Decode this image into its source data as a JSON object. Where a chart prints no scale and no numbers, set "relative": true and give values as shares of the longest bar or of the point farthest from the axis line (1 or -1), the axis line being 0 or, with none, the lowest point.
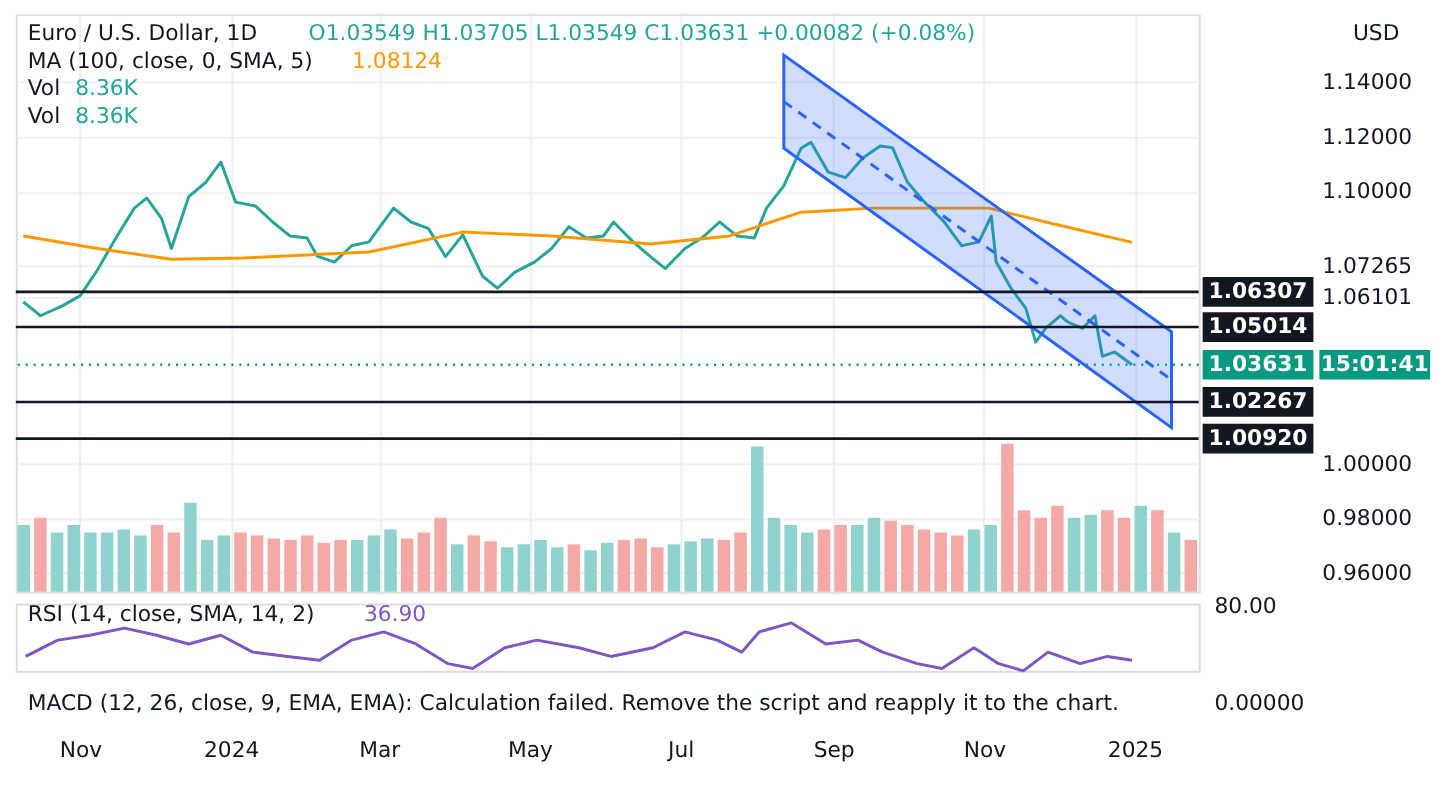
{
  "chart_data": [
    {
      "type": "line",
      "annotations": [
        "Euro / U.S. Dollar, 1D",
        "O1.03549 H1.03705 L1.03549 C1.03631 +0.00082 (+0.08%)",
        "MA (100, close, 0, SMA, 5)",
        "1.08124",
        "Vol",
        "8.36K",
        "Vol",
        "8.36K",
        "USD",
        "15:01:41"
      ],
      "xlim": [
        "2023-10-06",
        "2025-01-27"
      ],
      "xticks": [
        {
          "value": "2023-11-01",
          "label": null
        },
        {
          "value": "2024-01-01",
          "label": null
        },
        {
          "value": "2024-03-01",
          "label": null
        },
        {
          "value": "2024-05-01",
          "label": null
        },
        {
          "value": "2024-07-01",
          "label": null
        },
        {
          "value": "2024-09-01",
          "label": null
        },
        {
          "value": "2024-11-01",
          "label": null
        },
        {
          "value": "2025-01-01",
          "label": null
        }
      ],
      "ylim": [
        0.953,
        1.165
      ],
      "yticks": [
        {
          "value": 1.14,
          "label": "1.14000"
        },
        {
          "value": 1.12,
          "label": "1.12000"
        },
        {
          "value": 1.1,
          "label": "1.10000"
        },
        {
          "value": 1.07265,
          "label": "1.07265"
        },
        {
          "value": 1.06101,
          "label": "1.06101"
        },
        {
          "value": 1.0,
          "label": "1.00000"
        },
        {
          "value": 0.98,
          "label": "0.98000"
        },
        {
          "value": 0.96,
          "label": "0.96000"
        }
      ],
      "grid": true,
      "tick_labels": "y",
      "marker": "none",
      "ref_lines": [
        {
          "axis": "y",
          "value": 1.06307,
          "label": "1.06307",
          "color": "#131722"
        },
        {
          "axis": "y",
          "value": 1.05014,
          "label": "1.05014",
          "color": "#131722"
        },
        {
          "axis": "y",
          "value": 1.03631,
          "label": "1.03631",
          "color": "#089981",
          "line_style": "dotted"
        },
        {
          "axis": "y",
          "value": 1.02267,
          "label": "1.02267",
          "color": "#131722"
        },
        {
          "axis": "y",
          "value": 1.0092,
          "label": "1.00920",
          "color": "#131722"
        }
      ],
      "series": [
        {
          "color": "#26a69a",
          "x": [
            "2023-10-09",
            "2023-10-16",
            "2023-10-25",
            "2023-11-01",
            "2023-11-08",
            "2023-11-16",
            "2023-11-23",
            "2023-11-28",
            "2023-12-04",
            "2023-12-08",
            "2023-12-15",
            "2023-12-22",
            "2023-12-28",
            "2024-01-03",
            "2024-01-11",
            "2024-01-18",
            "2024-01-25",
            "2024-02-01",
            "2024-02-05",
            "2024-02-12",
            "2024-02-19",
            "2024-02-26",
            "2024-03-07",
            "2024-03-14",
            "2024-03-21",
            "2024-03-28",
            "2024-04-04",
            "2024-04-12",
            "2024-04-18",
            "2024-04-25",
            "2024-05-03",
            "2024-05-10",
            "2024-05-17",
            "2024-05-24",
            "2024-05-31",
            "2024-06-04",
            "2024-06-12",
            "2024-06-19",
            "2024-06-25",
            "2024-07-03",
            "2024-07-10",
            "2024-07-17",
            "2024-07-24",
            "2024-07-31",
            "2024-08-05",
            "2024-08-12",
            "2024-08-19",
            "2024-08-23",
            "2024-08-30",
            "2024-09-06",
            "2024-09-13",
            "2024-09-20",
            "2024-09-25",
            "2024-10-01",
            "2024-10-08",
            "2024-10-16",
            "2024-10-23",
            "2024-10-30",
            "2024-11-04",
            "2024-11-06",
            "2024-11-12",
            "2024-11-18",
            "2024-11-22",
            "2024-11-26",
            "2024-12-02",
            "2024-12-05",
            "2024-12-11",
            "2024-12-16",
            "2024-12-19",
            "2024-12-24",
            "2024-12-31"
          ],
          "values": [
            1.0594,
            1.0543,
            1.058,
            1.0616,
            1.071,
            1.0836,
            1.0938,
            1.0975,
            1.09,
            1.079,
            1.098,
            1.1033,
            1.1107,
            1.096,
            1.0946,
            1.0887,
            1.0836,
            1.0828,
            1.0762,
            1.074,
            1.08,
            1.0814,
            1.0938,
            1.0887,
            1.0864,
            1.076,
            1.084,
            1.0688,
            1.0644,
            1.0702,
            1.074,
            1.079,
            1.087,
            1.0828,
            1.0836,
            1.0887,
            1.0814,
            1.076,
            1.0716,
            1.079,
            1.083,
            1.0887,
            1.0836,
            1.0828,
            1.0938,
            1.102,
            1.1158,
            1.118,
            1.107,
            1.105,
            1.1122,
            1.1166,
            1.116,
            1.1034,
            1.096,
            1.0887,
            1.08,
            1.0814,
            1.0909,
            1.074,
            1.0644,
            1.057,
            1.0446,
            1.0497,
            1.0543,
            1.052,
            1.0497,
            1.0543,
            1.0394,
            1.041,
            1.03631
          ]
        },
        {
          "color": "#ff9800",
          "x": [
            "2023-10-09",
            "2023-11-08",
            "2023-12-08",
            "2024-01-06",
            "2024-02-26",
            "2024-04-04",
            "2024-05-10",
            "2024-06-19",
            "2024-07-21",
            "2024-08-19",
            "2024-09-17",
            "2024-11-03",
            "2024-11-26",
            "2024-12-31"
          ],
          "values": [
            1.0836,
            1.079,
            1.075,
            1.0755,
            1.0777,
            1.085,
            1.0836,
            1.0806,
            1.0836,
            1.0923,
            1.0938,
            1.0938,
            1.0887,
            1.08124
          ]
        },
        {
          "color": "#2962ff",
          "line_style": "dashed",
          "x": [
            "2024-08-12",
            "2025-01-16"
          ],
          "values": [
            1.1329,
            1.0308
          ],
          "lower": [
            1.1158,
            1.0132
          ],
          "upper": [
            1.15,
            1.0484
          ]
        }
      ]
    },
    {
      "type": "bar",
      "relative": true,
      "categories": [
        null,
        null,
        null,
        null,
        null,
        null,
        null,
        null,
        null,
        null,
        null,
        null,
        null,
        null,
        null,
        null,
        null,
        null,
        null,
        null,
        null,
        null,
        null,
        null,
        null,
        null,
        null,
        null,
        null,
        null,
        null,
        null,
        null,
        null,
        null,
        null,
        null,
        null,
        null,
        null,
        null,
        null,
        null,
        null,
        null,
        null,
        null,
        null,
        null,
        null,
        null,
        null,
        null,
        null,
        null,
        null,
        null,
        null,
        null,
        null,
        null,
        null,
        null,
        null,
        null,
        null,
        null,
        null,
        null,
        null,
        null
      ],
      "values": [
        0.45,
        0.5,
        0.4,
        0.45,
        0.4,
        0.4,
        0.42,
        0.38,
        0.45,
        0.4,
        0.6,
        0.35,
        0.38,
        0.4,
        0.38,
        0.36,
        0.35,
        0.38,
        0.33,
        0.35,
        0.35,
        0.38,
        0.42,
        0.36,
        0.4,
        0.5,
        0.32,
        0.38,
        0.34,
        0.3,
        0.32,
        0.35,
        0.3,
        0.32,
        0.28,
        0.33,
        0.35,
        0.36,
        0.3,
        0.32,
        0.34,
        0.36,
        0.35,
        0.4,
        0.98,
        0.5,
        0.45,
        0.4,
        0.42,
        0.45,
        0.45,
        0.5,
        0.48,
        0.45,
        0.42,
        0.4,
        0.38,
        0.42,
        0.45,
        1.0,
        0.55,
        0.5,
        0.58,
        0.5,
        0.52,
        0.55,
        0.5,
        0.58,
        0.55,
        0.4,
        0.35
      ],
      "colors": [
        "#8fd3cc",
        "#f5a9a6",
        "#8fd3cc",
        "#8fd3cc",
        "#8fd3cc",
        "#8fd3cc",
        "#8fd3cc",
        "#8fd3cc",
        "#f5a9a6",
        "#f5a9a6",
        "#8fd3cc",
        "#8fd3cc",
        "#8fd3cc",
        "#f5a9a6",
        "#f5a9a6",
        "#f5a9a6",
        "#f5a9a6",
        "#f5a9a6",
        "#f5a9a6",
        "#f5a9a6",
        "#8fd3cc",
        "#8fd3cc",
        "#8fd3cc",
        "#f5a9a6",
        "#f5a9a6",
        "#f5a9a6",
        "#8fd3cc",
        "#f5a9a6",
        "#f5a9a6",
        "#8fd3cc",
        "#8fd3cc",
        "#8fd3cc",
        "#8fd3cc",
        "#f5a9a6",
        "#8fd3cc",
        "#8fd3cc",
        "#f5a9a6",
        "#f5a9a6",
        "#f5a9a6",
        "#8fd3cc",
        "#8fd3cc",
        "#8fd3cc",
        "#f5a9a6",
        "#f5a9a6",
        "#8fd3cc",
        "#8fd3cc",
        "#8fd3cc",
        "#8fd3cc",
        "#f5a9a6",
        "#f5a9a6",
        "#8fd3cc",
        "#8fd3cc",
        "#f5a9a6",
        "#f5a9a6",
        "#f5a9a6",
        "#f5a9a6",
        "#f5a9a6",
        "#8fd3cc",
        "#8fd3cc",
        "#f5a9a6",
        "#f5a9a6",
        "#f5a9a6",
        "#f5a9a6",
        "#8fd3cc",
        "#8fd3cc",
        "#f5a9a6",
        "#f5a9a6",
        "#8fd3cc",
        "#f5a9a6",
        "#8fd3cc",
        "#f5a9a6"
      ]
    },
    {
      "type": "line",
      "relative": true,
      "annotations": [
        "RSI (14, close, SMA, 14, 2)",
        "36.90",
        "80.00"
      ],
      "tick_labels": "x",
      "marker": "none",
      "xlim": [
        "2023-10-06",
        "2025-01-27"
      ],
      "xticks": [
        {
          "value": "2023-11-01",
          "label": "Nov"
        },
        {
          "value": "2024-01-01",
          "label": "2024"
        },
        {
          "value": "2024-03-01",
          "label": "Mar"
        },
        {
          "value": "2024-05-01",
          "label": "May"
        },
        {
          "value": "2024-07-01",
          "label": "Jul"
        },
        {
          "value": "2024-09-01",
          "label": "Sep"
        },
        {
          "value": "2024-11-01",
          "label": "Nov"
        },
        {
          "value": "2025-01-01",
          "label": "2025"
        }
      ],
      "series": [
        {
          "color": "#7e57c2",
          "x": [
            "2023-10-10",
            "2023-10-23",
            "2023-11-05",
            "2023-11-19",
            "2023-12-02",
            "2023-12-15",
            "2023-12-28",
            "2024-01-10",
            "2024-01-24",
            "2024-02-06",
            "2024-02-19",
            "2024-03-03",
            "2024-03-16",
            "2024-03-29",
            "2024-04-08",
            "2024-04-21",
            "2024-05-04",
            "2024-05-21",
            "2024-06-03",
            "2024-06-20",
            "2024-07-03",
            "2024-07-16",
            "2024-07-26",
            "2024-08-02",
            "2024-08-15",
            "2024-08-29",
            "2024-09-11",
            "2024-09-21",
            "2024-10-05",
            "2024-10-15",
            "2024-10-28",
            "2024-11-07",
            "2024-11-17",
            "2024-11-27",
            "2024-12-10",
            "2024-12-21",
            "2024-12-31"
          ],
          "values": [
            0.3,
            0.64,
            0.74,
            0.89,
            0.74,
            0.56,
            0.74,
            0.39,
            0.3,
            0.22,
            0.64,
            0.81,
            0.56,
            0.15,
            0.05,
            0.48,
            0.64,
            0.48,
            0.3,
            0.48,
            0.81,
            0.64,
            0.39,
            0.81,
            1.0,
            0.56,
            0.64,
            0.39,
            0.15,
            0.05,
            0.48,
            0.15,
            0,
            0.39,
            0.15,
            0.3,
            0.22
          ]
        }
      ]
    },
    {
      "type": "other",
      "annotations": [
        "MACD (12, 26, close, 9, EMA, EMA): Calculation failed. Remove the script and reapply it to the chart.",
        "0.00000"
      ]
    }
  ]
}
